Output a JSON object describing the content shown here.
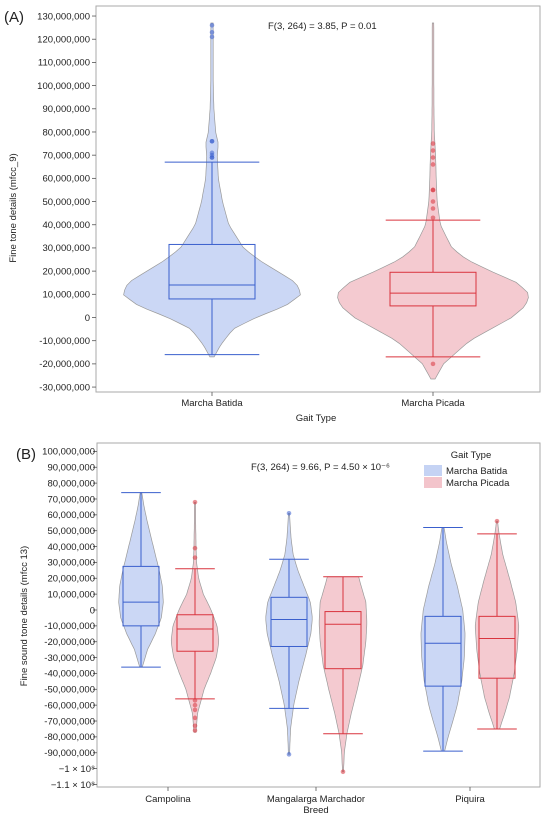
{
  "colors": {
    "batida_fill": "#c5d3f4",
    "batida_line": "#3a5fcd",
    "picada_fill": "#f3c4cb",
    "picada_line": "#d9343e",
    "frame": "#aaaaaa"
  },
  "chart_data": [
    {
      "id": "A",
      "type": "violin",
      "panel_label": "(A)",
      "annotation": "F(3, 264) = 3.85, P = 0.01",
      "xlabel": "Gait Type",
      "ylabel": "Fine tone details (mfcc_9)",
      "ylim": [
        -33000000,
        133000000
      ],
      "yticks": [
        130000000,
        120000000,
        110000000,
        100000000,
        90000000,
        80000000,
        70000000,
        60000000,
        50000000,
        40000000,
        30000000,
        20000000,
        10000000,
        0,
        -10000000,
        -20000000,
        -30000000
      ],
      "ytick_labels": [
        "130,000,000",
        "120,000,000",
        "110,000,000",
        "100,000,000",
        "90,000,000",
        "80,000,000",
        "70,000,000",
        "60,000,000",
        "50,000,000",
        "40,000,000",
        "30,000,000",
        "20,000,000",
        "10,000,000",
        "0",
        "-10,000,000",
        "-20,000,000",
        "-30,000,000"
      ],
      "categories": [
        "Marcha Batida",
        "Marcha Picada"
      ],
      "series": [
        {
          "group": "Marcha Batida",
          "color_key": "batida",
          "box": {
            "q1": 8000000,
            "median": 14000000,
            "q3": 31500000,
            "whisker_low": -16000000,
            "whisker_high": 67000000
          },
          "violin_range": [
            -17000000,
            127000000
          ],
          "outliers": [
            69000000,
            69000000,
            70000000,
            71000000,
            76000000,
            76000000,
            121000000,
            123000000,
            126000000
          ],
          "density": [
            [
              -17000000,
              0.02
            ],
            [
              -12000000,
              0.08
            ],
            [
              -5000000,
              0.2
            ],
            [
              0,
              0.42
            ],
            [
              5000000,
              0.7
            ],
            [
              10000000,
              0.85
            ],
            [
              15000000,
              0.8
            ],
            [
              20000000,
              0.62
            ],
            [
              25000000,
              0.44
            ],
            [
              30000000,
              0.3
            ],
            [
              40000000,
              0.16
            ],
            [
              50000000,
              0.1
            ],
            [
              60000000,
              0.06
            ],
            [
              70000000,
              0.05
            ],
            [
              75000000,
              0.06
            ],
            [
              80000000,
              0.035
            ],
            [
              90000000,
              0.018
            ],
            [
              100000000,
              0.012
            ],
            [
              110000000,
              0.011
            ],
            [
              120000000,
              0.012
            ],
            [
              127000000,
              0.01
            ]
          ]
        },
        {
          "group": "Marcha Picada",
          "color_key": "picada",
          "box": {
            "q1": 5000000,
            "median": 10500000,
            "q3": 19500000,
            "whisker_low": -17000000,
            "whisker_high": 42000000
          },
          "violin_range": [
            -26500000,
            127000000
          ],
          "outliers": [
            -20000000,
            43000000,
            47000000,
            50000000,
            55000000,
            55000000,
            66000000,
            69000000,
            72000000,
            75000000
          ],
          "density": [
            [
              -26500000,
              0.02
            ],
            [
              -20000000,
              0.1
            ],
            [
              -10000000,
              0.35
            ],
            [
              0,
              0.75
            ],
            [
              5000000,
              0.88
            ],
            [
              10000000,
              0.92
            ],
            [
              15000000,
              0.8
            ],
            [
              20000000,
              0.55
            ],
            [
              25000000,
              0.32
            ],
            [
              30000000,
              0.18
            ],
            [
              40000000,
              0.07
            ],
            [
              50000000,
              0.04
            ],
            [
              60000000,
              0.03
            ],
            [
              70000000,
              0.025
            ],
            [
              80000000,
              0.012
            ],
            [
              90000000,
              0.009
            ],
            [
              100000000,
              0.008
            ],
            [
              110000000,
              0.008
            ],
            [
              120000000,
              0.008
            ],
            [
              127000000,
              0.007
            ]
          ]
        }
      ]
    },
    {
      "id": "B",
      "type": "violin",
      "panel_label": "(B)",
      "annotation": "F(3, 264) = 9.66, P = 4.50 × 10⁻⁶",
      "xlabel": "Breed",
      "xlabel_top": "Mangalarga Marchador",
      "ylabel": "Fine sound tone details (mfcc 13)",
      "ylim": [
        -115000000,
        102000000
      ],
      "yticks": [
        100000000,
        90000000,
        80000000,
        70000000,
        60000000,
        50000000,
        40000000,
        30000000,
        20000000,
        10000000,
        0,
        -10000000,
        -20000000,
        -30000000,
        -40000000,
        -50000000,
        -60000000,
        -70000000,
        -80000000,
        -90000000,
        -100000000,
        -110000000
      ],
      "ytick_labels": [
        "100,000,000",
        "90,000,000",
        "80,000,000",
        "70,000,000",
        "60,000,000",
        "50,000,000",
        "40,000,000",
        "30,000,000",
        "20,000,000",
        "10,000,000",
        "0",
        "-10,000,000",
        "-20,000,000",
        "-30,000,000",
        "-40,000,000",
        "-50,000,000",
        "-60,000,000",
        "-70,000,000",
        "-80,000,000",
        "-90,000,000",
        "−1 × 10⁸",
        "−1.1 × 10⁸"
      ],
      "categories": [
        "Campolina",
        "",
        "Piquira"
      ],
      "legend": {
        "title": "Gait Type",
        "entries": [
          "Marcha Batida",
          "Marcha Picada"
        ],
        "position": "top-right"
      },
      "series": [
        {
          "group": "Campolina",
          "sub": "Marcha Batida",
          "color_key": "batida",
          "box": {
            "q1": -10000000,
            "median": 5000000,
            "q3": 27500000,
            "whisker_low": -36000000,
            "whisker_high": 74000000
          },
          "violin_range": [
            -36000000,
            74000000
          ],
          "outliers": [],
          "density": [
            [
              -36000000,
              0.05
            ],
            [
              -25000000,
              0.25
            ],
            [
              -15000000,
              0.55
            ],
            [
              -5000000,
              0.78
            ],
            [
              5000000,
              0.86
            ],
            [
              15000000,
              0.82
            ],
            [
              25000000,
              0.7
            ],
            [
              35000000,
              0.55
            ],
            [
              45000000,
              0.4
            ],
            [
              55000000,
              0.25
            ],
            [
              65000000,
              0.12
            ],
            [
              74000000,
              0.03
            ]
          ]
        },
        {
          "group": "Campolina",
          "sub": "Marcha Picada",
          "color_key": "picada",
          "box": {
            "q1": -26000000,
            "median": -12000000,
            "q3": -3000000,
            "whisker_low": -56000000,
            "whisker_high": 26000000
          },
          "violin_range": [
            -77000000,
            68000000
          ],
          "outliers": [
            -57000000,
            -60000000,
            -63000000,
            -68000000,
            -73000000,
            -76000000,
            33000000,
            39000000,
            68000000
          ],
          "density": [
            [
              -77000000,
              0.04
            ],
            [
              -65000000,
              0.1
            ],
            [
              -50000000,
              0.35
            ],
            [
              -40000000,
              0.6
            ],
            [
              -30000000,
              0.82
            ],
            [
              -20000000,
              0.92
            ],
            [
              -10000000,
              0.85
            ],
            [
              0,
              0.62
            ],
            [
              10000000,
              0.32
            ],
            [
              20000000,
              0.14
            ],
            [
              30000000,
              0.06
            ],
            [
              40000000,
              0.04
            ],
            [
              55000000,
              0.025
            ],
            [
              68000000,
              0.02
            ]
          ]
        },
        {
          "group": "Mangalarga Marchador",
          "sub": "Marcha Batida",
          "color_key": "batida",
          "box": {
            "q1": -23000000,
            "median": -6000000,
            "q3": 8000000,
            "whisker_low": -62000000,
            "whisker_high": 32000000
          },
          "violin_range": [
            -91000000,
            61000000
          ],
          "outliers": [
            -91000000,
            61000000
          ],
          "density": [
            [
              -91000000,
              0.02
            ],
            [
              -75000000,
              0.06
            ],
            [
              -60000000,
              0.18
            ],
            [
              -45000000,
              0.38
            ],
            [
              -30000000,
              0.62
            ],
            [
              -15000000,
              0.84
            ],
            [
              -5000000,
              0.9
            ],
            [
              5000000,
              0.82
            ],
            [
              15000000,
              0.58
            ],
            [
              25000000,
              0.34
            ],
            [
              35000000,
              0.16
            ],
            [
              45000000,
              0.08
            ],
            [
              55000000,
              0.04
            ],
            [
              61000000,
              0.02
            ]
          ]
        },
        {
          "group": "Mangalarga Marchador",
          "sub": "Marcha Picada",
          "color_key": "picada",
          "box": {
            "q1": -37000000,
            "median": -9000000,
            "q3": -1000000,
            "whisker_low": -78000000,
            "whisker_high": 21000000
          },
          "violin_range": [
            -102000000,
            21000000
          ],
          "outliers": [
            -102000000
          ],
          "density": [
            [
              -102000000,
              0.02
            ],
            [
              -90000000,
              0.05
            ],
            [
              -78000000,
              0.15
            ],
            [
              -65000000,
              0.32
            ],
            [
              -50000000,
              0.55
            ],
            [
              -35000000,
              0.76
            ],
            [
              -20000000,
              0.88
            ],
            [
              -8000000,
              0.92
            ],
            [
              5000000,
              0.88
            ],
            [
              15000000,
              0.7
            ],
            [
              21000000,
              0.6
            ]
          ]
        },
        {
          "group": "Piquira",
          "sub": "Marcha Batida",
          "color_key": "batida",
          "box": {
            "q1": -48000000,
            "median": -21000000,
            "q3": -4000000,
            "whisker_low": -89000000,
            "whisker_high": 52000000
          },
          "violin_range": [
            -89000000,
            52000000
          ],
          "outliers": [],
          "density": [
            [
              -89000000,
              0.06
            ],
            [
              -80000000,
              0.2
            ],
            [
              -70000000,
              0.38
            ],
            [
              -60000000,
              0.55
            ],
            [
              -45000000,
              0.72
            ],
            [
              -30000000,
              0.82
            ],
            [
              -15000000,
              0.85
            ],
            [
              0,
              0.76
            ],
            [
              15000000,
              0.55
            ],
            [
              30000000,
              0.3
            ],
            [
              42000000,
              0.14
            ],
            [
              52000000,
              0.04
            ]
          ]
        },
        {
          "group": "Piquira",
          "sub": "Marcha Picada",
          "color_key": "picada",
          "box": {
            "q1": -43000000,
            "median": -18000000,
            "q3": -4000000,
            "whisker_low": -75000000,
            "whisker_high": 48000000
          },
          "violin_range": [
            -75000000,
            56000000
          ],
          "outliers": [
            56000000
          ],
          "density": [
            [
              -75000000,
              0.1
            ],
            [
              -65000000,
              0.3
            ],
            [
              -55000000,
              0.48
            ],
            [
              -40000000,
              0.66
            ],
            [
              -25000000,
              0.78
            ],
            [
              -10000000,
              0.84
            ],
            [
              5000000,
              0.72
            ],
            [
              20000000,
              0.48
            ],
            [
              35000000,
              0.22
            ],
            [
              48000000,
              0.08
            ],
            [
              56000000,
              0.02
            ]
          ]
        }
      ]
    }
  ]
}
